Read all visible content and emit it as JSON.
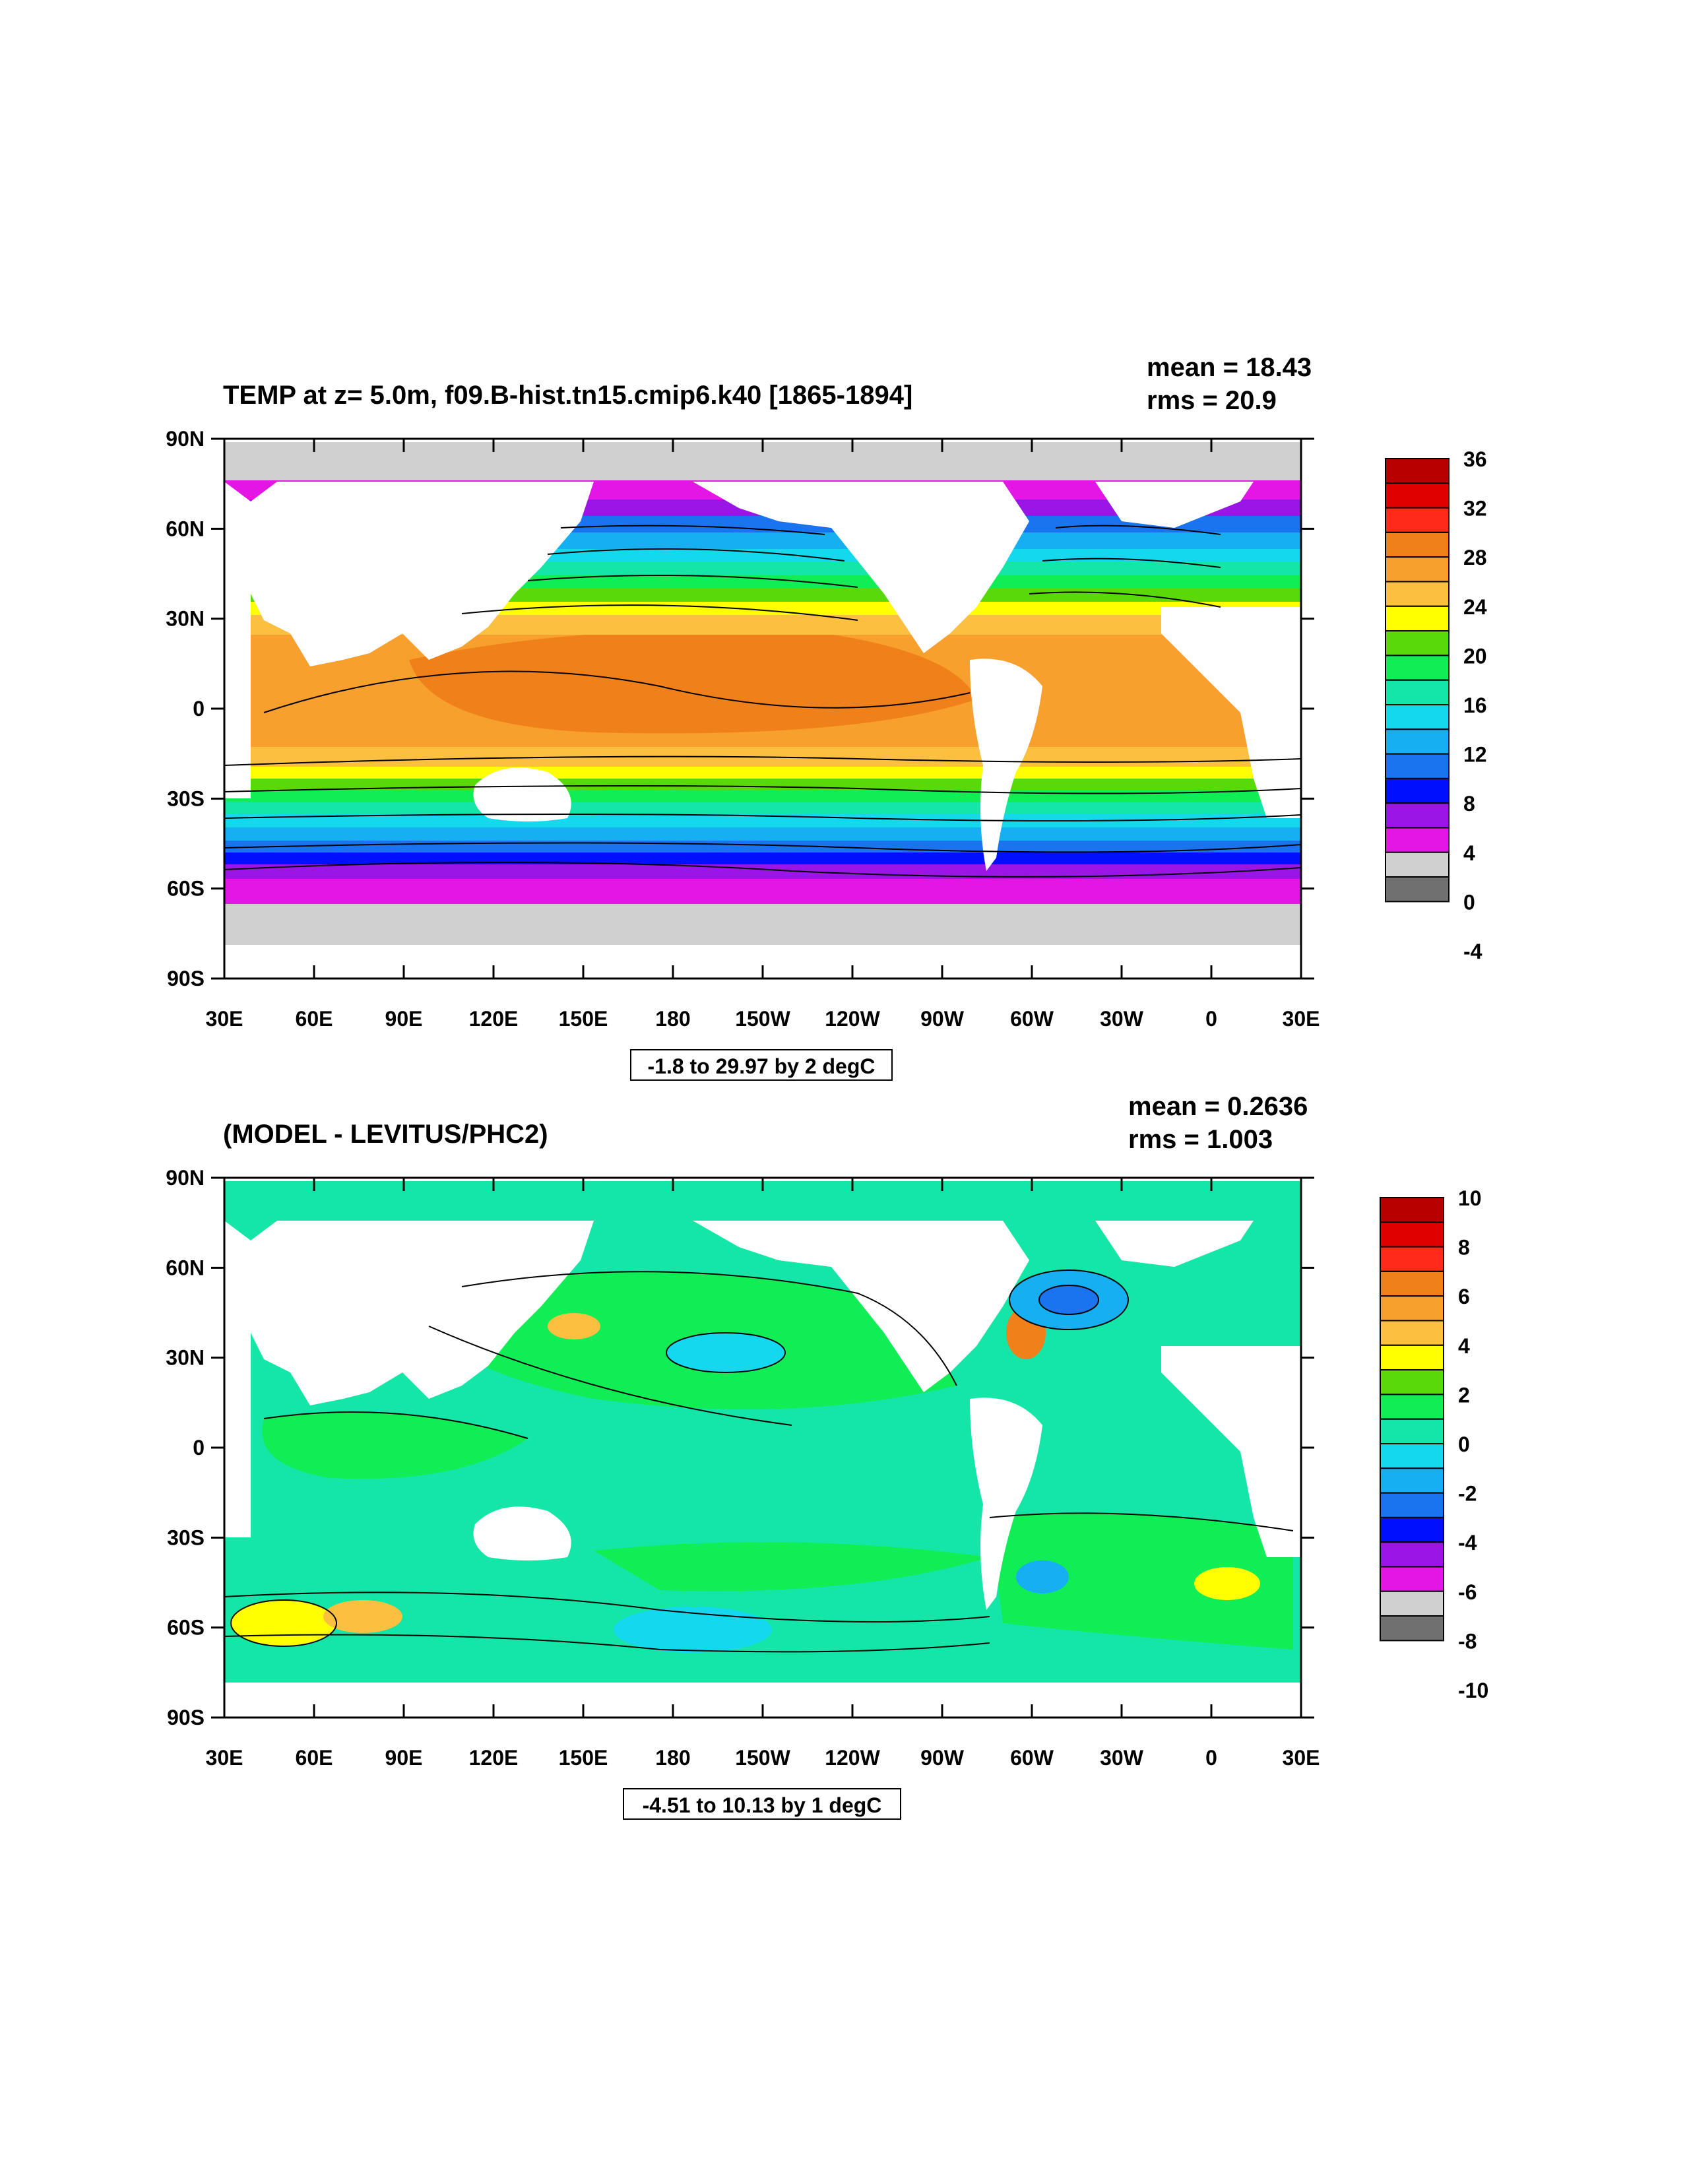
{
  "panels": [
    {
      "title": "TEMP at z=   5.0m, f09.B-hist.tn15.cmip6.k40 [1865-1894]",
      "mean_text": "mean = 18.43",
      "rms_text": "rms = 20.9",
      "range_text": "-1.8 to 29.97 by 2 degC"
    },
    {
      "title": "(MODEL - LEVITUS/PHC2)",
      "mean_text": "mean = 0.2636",
      "rms_text": "rms = 1.003",
      "range_text": "-4.51 to 10.13 by 1 degC"
    }
  ],
  "chart_data": [
    {
      "type": "heatmap",
      "title": "TEMP at z=   5.0m, f09.B-hist.tn15.cmip6.k40 [1865-1894]",
      "x_tick_labels": [
        "30E",
        "60E",
        "90E",
        "120E",
        "150E",
        "180",
        "150W",
        "120W",
        "90W",
        "60W",
        "30W",
        "0",
        "30E"
      ],
      "y_tick_labels": [
        "90N",
        "60N",
        "30N",
        "0",
        "30S",
        "60S",
        "90S"
      ],
      "xlim": [
        30,
        390
      ],
      "ylim": [
        -90,
        90
      ],
      "colorbar": {
        "labels": [
          "36",
          "32",
          "28",
          "24",
          "20",
          "16",
          "12",
          "8",
          "4",
          "0",
          "-4"
        ],
        "colors": [
          "#b80000",
          "#e00000",
          "#ff2a1a",
          "#f0801a",
          "#f7a02e",
          "#fbc040",
          "#ffff00",
          "#5ad90a",
          "#11ee55",
          "#14e6a8",
          "#14d8ee",
          "#16b0f2",
          "#1a74f0",
          "#0010ff",
          "#9a16e6",
          "#e416e6",
          "#d0d0d0",
          "#707070"
        ]
      },
      "mean": 18.43,
      "rms": 20.9,
      "contour_range": [
        -1.8,
        29.97
      ],
      "contour_interval": 2,
      "units": "degC"
    },
    {
      "type": "heatmap",
      "title": "(MODEL - LEVITUS/PHC2)",
      "x_tick_labels": [
        "30E",
        "60E",
        "90E",
        "120E",
        "150E",
        "180",
        "150W",
        "120W",
        "90W",
        "60W",
        "30W",
        "0",
        "30E"
      ],
      "y_tick_labels": [
        "90N",
        "60N",
        "30N",
        "0",
        "30S",
        "60S",
        "90S"
      ],
      "xlim": [
        30,
        390
      ],
      "ylim": [
        -90,
        90
      ],
      "colorbar": {
        "labels": [
          "10",
          "8",
          "6",
          "4",
          "2",
          "0",
          "-2",
          "-4",
          "-6",
          "-8",
          "-10"
        ],
        "colors": [
          "#b80000",
          "#e00000",
          "#ff2a1a",
          "#f0801a",
          "#f7a02e",
          "#fbc040",
          "#ffff00",
          "#5ad90a",
          "#11ee55",
          "#14e6a8",
          "#14d8ee",
          "#16b0f2",
          "#1a74f0",
          "#0010ff",
          "#9a16e6",
          "#e416e6",
          "#d0d0d0",
          "#707070"
        ]
      },
      "mean": 0.2636,
      "rms": 1.003,
      "contour_range": [
        -4.51,
        10.13
      ],
      "contour_interval": 1,
      "units": "degC"
    }
  ]
}
